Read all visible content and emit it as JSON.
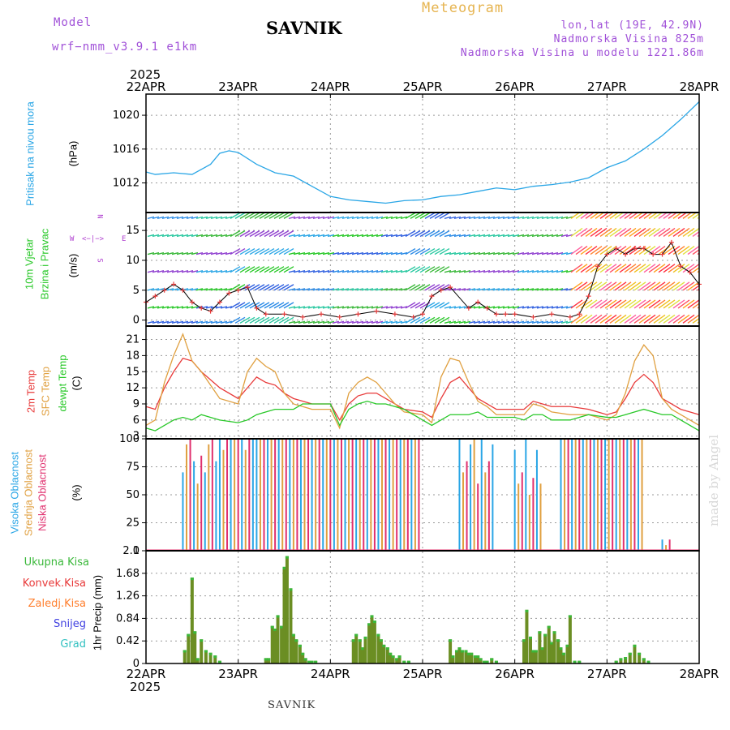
{
  "header": {
    "model_label": "Model",
    "model_name": "wrf−nmm_v3.9.1  e1km",
    "station": "SAVNIK",
    "title": "Meteogram",
    "lonlat": "lon,lat (19E, 42.9N)",
    "altitude": "Nadmorska Visina 825m",
    "model_altitude": "Nadmorska Visina u modelu 1221.86m",
    "year_top": "2025",
    "year_bottom": "2025",
    "footer_station": "SAVNIK",
    "made_by": "made by Angel"
  },
  "colors": {
    "pressure": "#2aa6e6",
    "temp2m": "#e83a3a",
    "sfc": "#e0a040",
    "dewpt": "#28c828",
    "cloud_high": "#2aa6e6",
    "cloud_mid": "#e0a040",
    "cloud_low": "#e0306e",
    "precip_total": "#3ab83a",
    "precip_conv": "#e83a3a",
    "precip_strat": "#ff8030",
    "snow": "#4040e0",
    "graupel": "#30c0c0",
    "wind_label": "#28c828",
    "wind_compass": "#b040d0"
  },
  "x_axis": {
    "labels": [
      "22APR",
      "23APR",
      "24APR",
      "25APR",
      "26APR",
      "27APR",
      "28APR"
    ]
  },
  "panels": {
    "pressure": {
      "label1": "Pritisak na nivou mora",
      "unit": "(hPa)"
    },
    "wind": {
      "label1": "10m Vjetar",
      "label2": "Brzina i Pravac",
      "unit": "(m/s)",
      "compass_n": "N",
      "compass_e": "E",
      "compass_w": "W",
      "compass_s": "S"
    },
    "temp": {
      "label1": "2m Temp",
      "label2": "SFC Temp",
      "label3": "dewpt Temp",
      "unit": "(C)"
    },
    "cloud": {
      "label1": "Visoka Oblacnost",
      "label2": "Srednja Oblacnost",
      "label3": "Niska Oblacnost",
      "unit": "(%)"
    },
    "precip": {
      "unit": "1hr Precip (mm)",
      "legend": [
        "Ukupna Kisa",
        "Konvek.Kisa",
        "Zaledj.Kisa",
        "Snijeg",
        "Grad"
      ]
    }
  },
  "chart_data": [
    {
      "type": "line",
      "title": "",
      "ylabel": "(hPa)",
      "yticks": [
        1012,
        1016,
        1020
      ],
      "ylim": [
        1008.5,
        1022.5
      ],
      "series": [
        {
          "name": "Pritisak na nivou mora",
          "x": [
            0,
            0.1,
            0.3,
            0.5,
            0.7,
            0.8,
            0.9,
            1.0,
            1.2,
            1.4,
            1.6,
            1.8,
            2.0,
            2.2,
            2.4,
            2.6,
            2.8,
            3.0,
            3.2,
            3.4,
            3.6,
            3.8,
            4.0,
            4.2,
            4.4,
            4.6,
            4.8,
            5.0,
            5.2,
            5.4,
            5.6,
            5.8,
            6.0
          ],
          "y": [
            1013.3,
            1013.0,
            1013.2,
            1013.0,
            1014.2,
            1015.5,
            1015.8,
            1015.6,
            1014.2,
            1013.2,
            1012.8,
            1011.6,
            1010.4,
            1010.0,
            1009.8,
            1009.6,
            1009.9,
            1010.0,
            1010.4,
            1010.6,
            1011.0,
            1011.4,
            1011.2,
            1011.6,
            1011.8,
            1012.1,
            1012.6,
            1013.8,
            1014.6,
            1016.0,
            1017.6,
            1019.5,
            1021.6
          ]
        }
      ]
    },
    {
      "type": "line",
      "title": "",
      "ylabel": "(m/s)",
      "yticks": [
        0,
        5,
        10,
        15
      ],
      "ylim": [
        -1,
        18
      ],
      "series": [
        {
          "name": "",
          "x": [
            0,
            0.1,
            0.2,
            0.3,
            0.4,
            0.5,
            0.6,
            0.7,
            0.8,
            0.9,
            1.0,
            1.1,
            1.2,
            1.3,
            1.5,
            1.7,
            1.9,
            2.1,
            2.3,
            2.5,
            2.7,
            2.9,
            3.0,
            3.1,
            3.2,
            3.3,
            3.5,
            3.6,
            3.7,
            3.8,
            3.9,
            4.0,
            4.2,
            4.4,
            4.6,
            4.7,
            4.8,
            4.9,
            5.0,
            5.1,
            5.2,
            5.3,
            5.4,
            5.5,
            5.6,
            5.7,
            5.8,
            5.9,
            6.0
          ],
          "y": [
            3,
            4,
            5,
            6,
            5,
            3,
            2,
            1.5,
            3,
            4.5,
            5,
            5.5,
            2,
            1,
            1,
            0.5,
            1,
            0.5,
            1,
            1.5,
            1,
            0.5,
            1,
            4,
            5,
            5.5,
            2,
            3,
            2,
            1,
            1,
            1,
            0.5,
            1,
            0.5,
            1,
            4,
            9,
            11,
            12,
            11,
            12,
            12,
            11,
            11,
            13,
            9,
            8,
            6
          ]
        }
      ]
    },
    {
      "type": "line",
      "title": "",
      "ylabel": "(C)",
      "yticks": [
        3,
        6,
        9,
        12,
        15,
        18,
        21
      ],
      "ylim": [
        2.5,
        23.5
      ],
      "x": [
        0,
        0.1,
        0.2,
        0.3,
        0.4,
        0.5,
        0.6,
        0.8,
        1.0,
        1.1,
        1.2,
        1.3,
        1.4,
        1.5,
        1.6,
        1.7,
        1.8,
        2.0,
        2.1,
        2.2,
        2.3,
        2.4,
        2.5,
        2.6,
        2.7,
        2.8,
        3.0,
        3.1,
        3.2,
        3.3,
        3.4,
        3.5,
        3.6,
        3.7,
        3.8,
        4.0,
        4.1,
        4.2,
        4.3,
        4.4,
        4.6,
        4.8,
        5.0,
        5.1,
        5.2,
        5.3,
        5.4,
        5.5,
        5.6,
        5.7,
        5.8,
        6.0
      ],
      "series": [
        {
          "name": "2m Temp",
          "y": [
            8.5,
            8,
            12,
            15,
            17.5,
            17,
            15,
            12,
            10,
            12,
            14,
            13,
            12.5,
            11,
            10,
            9.5,
            9,
            9,
            6,
            9,
            10.5,
            11,
            11,
            10,
            9,
            8,
            7.5,
            6.5,
            10,
            13,
            14,
            12,
            10,
            9,
            8,
            8,
            8,
            9.5,
            9,
            8.5,
            8.5,
            8,
            7,
            7.5,
            10,
            13,
            14.5,
            13,
            10,
            9,
            8,
            7
          ]
        },
        {
          "name": "SFC Temp",
          "y": [
            5,
            6,
            13,
            18,
            22,
            17,
            15,
            10,
            9,
            15,
            17.5,
            16,
            15,
            11,
            9,
            8.5,
            8,
            8,
            4.5,
            11,
            13,
            14,
            13,
            11,
            9,
            7.5,
            7,
            5.5,
            14,
            17.5,
            17,
            13,
            9.5,
            8.5,
            7,
            7,
            7,
            9,
            8.5,
            7.5,
            7,
            7,
            6,
            7,
            11,
            17,
            20,
            18,
            10,
            8,
            7,
            5
          ]
        },
        {
          "name": "dewpt Temp",
          "y": [
            4.5,
            4,
            5,
            6,
            6.5,
            6,
            7,
            6,
            5.5,
            6,
            7,
            7.5,
            8,
            8,
            8,
            9,
            9,
            9,
            5,
            8,
            9,
            9.5,
            9,
            9,
            8.5,
            8,
            6,
            5,
            6,
            7,
            7,
            7,
            7.5,
            6.5,
            6.5,
            6.5,
            6,
            7,
            7,
            6,
            6,
            7,
            6.5,
            6.5,
            7,
            7.5,
            8,
            7.5,
            7,
            7,
            6,
            4
          ]
        }
      ]
    },
    {
      "type": "bar",
      "title": "",
      "ylabel": "(%)",
      "yticks": [
        0,
        25,
        50,
        75,
        100
      ],
      "ylim": [
        0,
        100
      ],
      "groups": [
        {
          "x0": 0.4,
          "x1": 0.8,
          "comment": "",
          "levels": [
            70,
            95,
            100,
            80,
            60,
            85
          ]
        },
        {
          "x0": 0.8,
          "x1": 1.2,
          "comment": "",
          "levels": [
            100,
            90,
            100,
            100,
            100,
            100
          ]
        },
        {
          "x0": 1.2,
          "x1": 3.0,
          "comment": "",
          "levels": [
            100,
            100,
            100,
            100,
            100,
            100
          ]
        },
        {
          "x0": 3.4,
          "x1": 3.8,
          "comment": "",
          "levels": [
            100,
            70,
            80,
            95,
            100,
            60
          ]
        },
        {
          "x0": 4.0,
          "x1": 4.3,
          "comment": "",
          "levels": [
            90,
            60,
            70,
            100,
            50,
            65
          ]
        },
        {
          "x0": 4.5,
          "x1": 5.4,
          "comment": "",
          "levels": [
            100,
            100,
            100,
            100,
            100,
            100
          ]
        },
        {
          "x0": 5.6,
          "x1": 5.7,
          "comment": "",
          "levels": [
            10,
            5
          ]
        }
      ],
      "series": [
        {
          "name": "Visoka Oblacnost"
        },
        {
          "name": "Srednja Oblacnost"
        },
        {
          "name": "Niska Oblacnost"
        }
      ]
    },
    {
      "type": "bar",
      "title": "",
      "ylabel": "1hr Precip (mm)",
      "yticks": [
        0,
        0.42,
        0.84,
        1.26,
        1.68,
        2.1
      ],
      "ylim": [
        0,
        2.1
      ],
      "x": [
        0.42,
        0.46,
        0.5,
        0.53,
        0.56,
        0.6,
        0.65,
        0.7,
        0.75,
        0.8,
        1.3,
        1.33,
        1.37,
        1.4,
        1.43,
        1.47,
        1.5,
        1.53,
        1.57,
        1.6,
        1.63,
        1.67,
        1.7,
        1.73,
        1.77,
        1.8,
        1.84,
        2.25,
        2.28,
        2.32,
        2.35,
        2.38,
        2.42,
        2.45,
        2.48,
        2.52,
        2.55,
        2.58,
        2.62,
        2.65,
        2.68,
        2.72,
        2.75,
        2.8,
        2.85,
        3.3,
        3.33,
        3.37,
        3.4,
        3.43,
        3.47,
        3.5,
        3.53,
        3.57,
        3.6,
        3.63,
        3.67,
        3.7,
        3.75,
        3.8,
        4.1,
        4.13,
        4.17,
        4.2,
        4.23,
        4.27,
        4.3,
        4.33,
        4.37,
        4.4,
        4.43,
        4.47,
        4.5,
        4.53,
        4.57,
        4.6,
        4.65,
        4.7,
        5.1,
        5.15,
        5.2,
        5.25,
        5.3,
        5.35,
        5.4,
        5.45
      ],
      "values": [
        0.25,
        0.55,
        1.6,
        0.6,
        0.1,
        0.45,
        0.25,
        0.2,
        0.15,
        0.05,
        0.1,
        0.1,
        0.7,
        0.65,
        0.9,
        0.7,
        1.8,
        2.0,
        1.4,
        0.55,
        0.45,
        0.35,
        0.2,
        0.1,
        0.05,
        0.05,
        0.05,
        0.45,
        0.55,
        0.45,
        0.3,
        0.5,
        0.75,
        0.9,
        0.8,
        0.55,
        0.45,
        0.35,
        0.3,
        0.2,
        0.15,
        0.1,
        0.15,
        0.05,
        0.05,
        0.45,
        0.15,
        0.25,
        0.3,
        0.25,
        0.25,
        0.2,
        0.2,
        0.15,
        0.15,
        0.1,
        0.05,
        0.05,
        0.1,
        0.05,
        0.45,
        1.0,
        0.5,
        0.25,
        0.25,
        0.6,
        0.3,
        0.55,
        0.7,
        0.4,
        0.6,
        0.45,
        0.3,
        0.2,
        0.35,
        0.9,
        0.05,
        0.05,
        0.05,
        0.1,
        0.12,
        0.2,
        0.35,
        0.2,
        0.1,
        0.05
      ],
      "series": [
        {
          "name": "Ukupna Kisa"
        },
        {
          "name": "Konvek.Kisa"
        }
      ]
    }
  ]
}
